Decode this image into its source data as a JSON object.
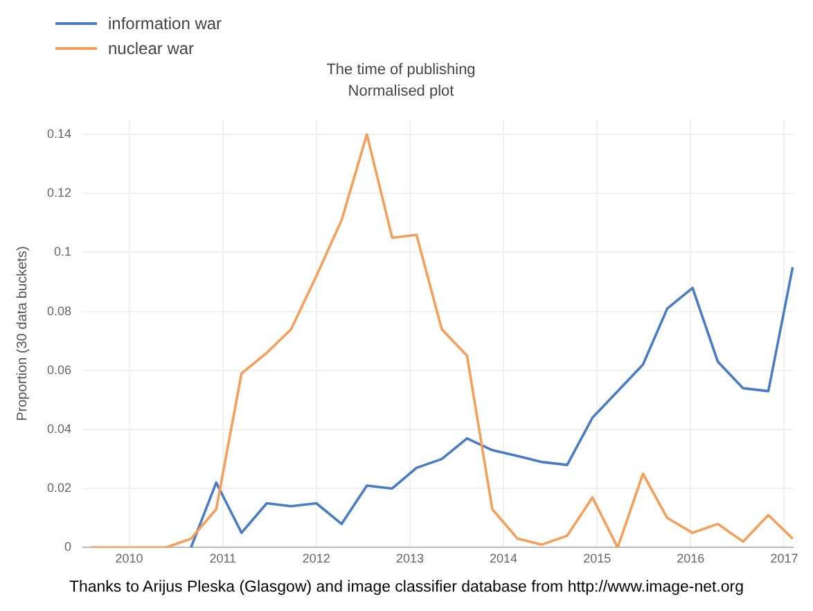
{
  "chart_data": {
    "type": "line",
    "title": "The time of publishing",
    "subtitle": "Normalised plot",
    "ylabel": "Proportion (30 data buckets)",
    "x": [
      2009.59,
      2009.86,
      2010.13,
      2010.39,
      2010.66,
      2010.93,
      2011.2,
      2011.47,
      2011.73,
      2012.0,
      2012.27,
      2012.54,
      2012.81,
      2013.07,
      2013.34,
      2013.61,
      2013.88,
      2014.15,
      2014.41,
      2014.68,
      2014.95,
      2015.22,
      2015.49,
      2015.75,
      2016.02,
      2016.29,
      2016.56,
      2016.83,
      2017.09
    ],
    "series": [
      {
        "name": "information war",
        "color": "#4a7cc4",
        "values": [
          null,
          null,
          null,
          null,
          0,
          0.022,
          0.005,
          0.015,
          0.014,
          0.015,
          0.008,
          0.021,
          0.02,
          0.027,
          0.03,
          0.037,
          0.033,
          0.031,
          0.029,
          0.028,
          0.044,
          0.053,
          0.062,
          0.081,
          0.088,
          0.063,
          0.054,
          0.053,
          0.095
        ]
      },
      {
        "name": "nuclear war",
        "color": "#f5a05a",
        "values": [
          0,
          0,
          0,
          0,
          0.003,
          0.013,
          0.059,
          0.066,
          0.074,
          0.092,
          0.111,
          0.14,
          0.105,
          0.106,
          0.074,
          0.065,
          0.013,
          0.003,
          0.001,
          0.004,
          0.017,
          0,
          0.025,
          0.01,
          0.005,
          0.008,
          0.002,
          0.011,
          0.003
        ]
      }
    ],
    "xlim": [
      2009.5,
      2017.1
    ],
    "xticks": [
      2010,
      2011,
      2012,
      2013,
      2014,
      2015,
      2016,
      2017
    ],
    "ylim": [
      0,
      0.145
    ],
    "yticks": [
      0,
      0.02,
      0.04,
      0.06,
      0.08,
      0.1,
      0.12,
      0.14
    ],
    "grid": true,
    "legend": "top left",
    "marker": "none",
    "line_style": "solid",
    "annotations": [
      "Thanks to Arijus Pleska (Glasgow) and image classifier database from http://www.image-net.org"
    ]
  }
}
